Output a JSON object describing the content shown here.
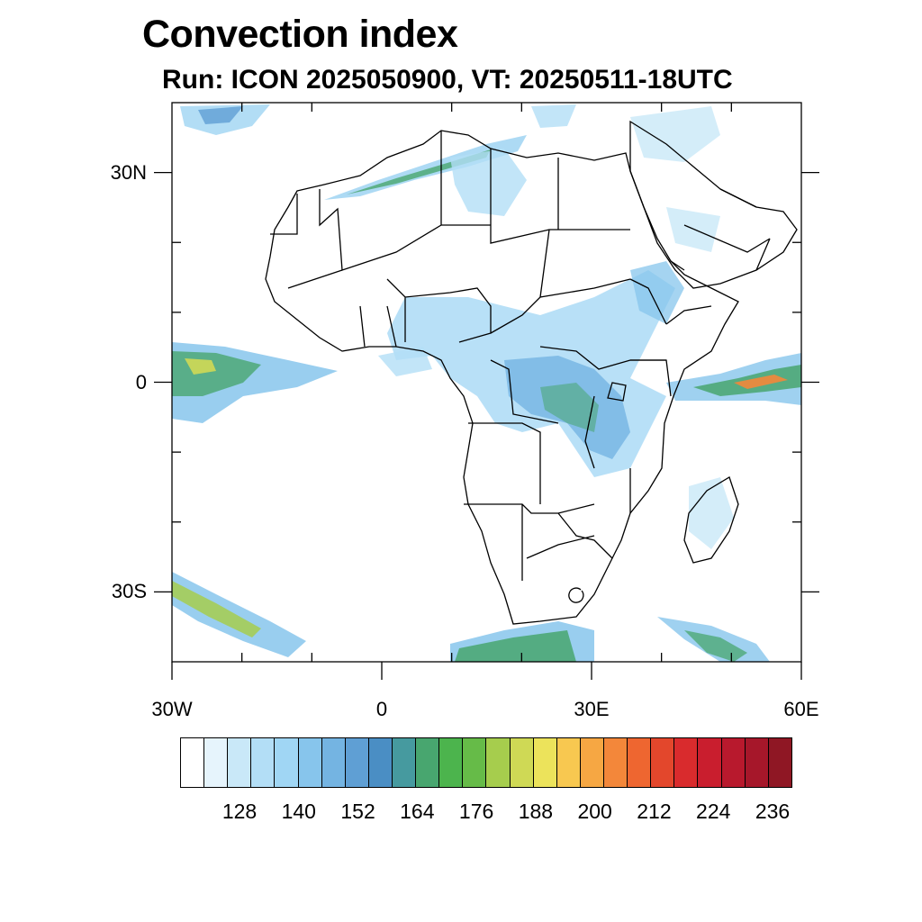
{
  "title": "Convection index",
  "subtitle": "Run: ICON 2025050900,  VT: 20250511-18UTC",
  "map": {
    "lon_range": [
      -30,
      60
    ],
    "lat_range": [
      -40,
      40
    ],
    "lat_labels": [
      {
        "lat": 30,
        "text": "30N"
      },
      {
        "lat": 0,
        "text": "0"
      },
      {
        "lat": -30,
        "text": "30S"
      }
    ],
    "lon_labels": [
      {
        "lon": -30,
        "text": "30W"
      },
      {
        "lon": 0,
        "text": "0"
      },
      {
        "lon": 30,
        "text": "30E"
      },
      {
        "lon": 60,
        "text": "60E"
      }
    ]
  },
  "colorbar": {
    "colors": [
      "#ffffff",
      "#e6f4fc",
      "#c9e8f8",
      "#b3def6",
      "#a0d6f4",
      "#87c5ec",
      "#74b4e2",
      "#5f9fd4",
      "#4a8ec4",
      "#469a9f",
      "#48a66f",
      "#4cb44d",
      "#66bb48",
      "#a6cd4d",
      "#cfd955",
      "#ece35b",
      "#f8c850",
      "#f6a743",
      "#f3873a",
      "#ee6630",
      "#e3472c",
      "#d92b2d",
      "#c91e2e",
      "#b8192d",
      "#a6172a",
      "#8f1724"
    ],
    "labels": [
      {
        "index": 2,
        "text": "128"
      },
      {
        "index": 5,
        "text": "140"
      },
      {
        "index": 8,
        "text": "152"
      },
      {
        "index": 11,
        "text": "164"
      },
      {
        "index": 14,
        "text": "176"
      },
      {
        "index": 17,
        "text": "188"
      },
      {
        "index": 20,
        "text": "200"
      },
      {
        "index": 23,
        "text": "212"
      },
      {
        "index": 26,
        "text": "224"
      },
      {
        "index": 29,
        "text": "236"
      }
    ]
  }
}
